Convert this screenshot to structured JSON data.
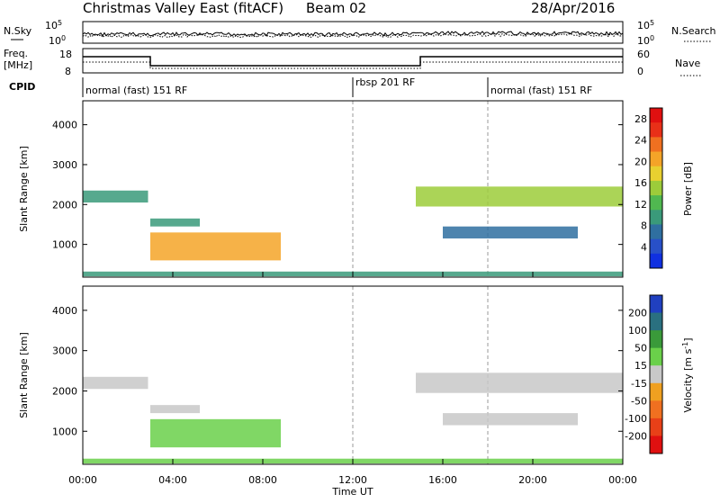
{
  "header": {
    "station": "Christmas Valley East (fitACF)",
    "beam": "Beam 02",
    "date": "28/Apr/2016"
  },
  "summary": {
    "nsky_label": "N.Sky",
    "nsearch_label": "N.Search",
    "noise_ticks_left": [
      "10^5",
      "10^0"
    ],
    "noise_ticks_right": [
      "10^5",
      "10^0"
    ],
    "freq_label_1": "Freq.",
    "freq_label_2": "[MHz]",
    "freq_ticks": [
      "18",
      "8"
    ],
    "nave_label": "Nave",
    "nave_ticks": [
      "60",
      "0"
    ],
    "cpid_label": "CPID",
    "cpid_segments": [
      {
        "label": "normal (fast) 151 RF",
        "start_hour": 0
      },
      {
        "label": "rbsp 201 RF",
        "start_hour": 12
      },
      {
        "label": "normal (fast) 151 RF",
        "start_hour": 18
      }
    ]
  },
  "chart_data": [
    {
      "type": "heatmap",
      "panel": "power",
      "ylabel": "Slant Range [km]",
      "xlim_hours": [
        0,
        24
      ],
      "ylim_km": [
        180,
        4600
      ],
      "yticks": [
        1000,
        2000,
        3000,
        4000
      ],
      "colorbar": {
        "label": "Power [dB]",
        "ticks": [
          4,
          8,
          12,
          16,
          20,
          24,
          28
        ],
        "range": [
          0,
          30
        ],
        "colors": [
          "#1030e0",
          "#2850c8",
          "#2f6fa0",
          "#3a9a7a",
          "#50b850",
          "#9ccc3a",
          "#e8d030",
          "#f4a428",
          "#f07020",
          "#e83018",
          "#e01010"
        ]
      },
      "echo_regions": [
        {
          "start_hour": 0.0,
          "end_hour": 2.9,
          "range_min_km": 2050,
          "range_max_km": 2350,
          "power_db": 10
        },
        {
          "start_hour": 3.0,
          "end_hour": 5.2,
          "range_min_km": 1450,
          "range_max_km": 1650,
          "power_db": 9
        },
        {
          "start_hour": 3.0,
          "end_hour": 8.8,
          "range_min_km": 600,
          "range_max_km": 1300,
          "power_db": 22
        },
        {
          "start_hour": 14.8,
          "end_hour": 24.0,
          "range_min_km": 1950,
          "range_max_km": 2450,
          "power_db": 14
        },
        {
          "start_hour": 16.0,
          "end_hour": 22.0,
          "range_min_km": 1150,
          "range_max_km": 1450,
          "power_db": 7
        },
        {
          "start_hour": 0.0,
          "end_hour": 24.0,
          "range_min_km": 200,
          "range_max_km": 320,
          "power_db": 8
        }
      ]
    },
    {
      "type": "heatmap",
      "panel": "velocity",
      "ylabel": "Slant Range [km]",
      "xlabel": "Time UT",
      "xticks": [
        "00:00",
        "04:00",
        "08:00",
        "12:00",
        "16:00",
        "20:00",
        "00:00"
      ],
      "xlim_hours": [
        0,
        24
      ],
      "ylim_km": [
        180,
        4600
      ],
      "yticks": [
        1000,
        2000,
        3000,
        4000
      ],
      "colorbar": {
        "label": "Velocity [m s^-1]",
        "tick_labels": [
          "200",
          "100",
          "50",
          "15",
          "-15",
          "-50",
          "-100",
          "-200"
        ],
        "colors": [
          "#2040c0",
          "#2a7080",
          "#3a9a3a",
          "#6ad04a",
          "#c8c8c8",
          "#f0a020",
          "#f07020",
          "#e84018",
          "#e01010"
        ]
      },
      "echo_regions": [
        {
          "start_hour": 0.0,
          "end_hour": 2.9,
          "range_min_km": 2050,
          "range_max_km": 2350,
          "velocity": 0
        },
        {
          "start_hour": 3.0,
          "end_hour": 5.2,
          "range_min_km": 1450,
          "range_max_km": 1650,
          "velocity": 0
        },
        {
          "start_hour": 3.0,
          "end_hour": 8.8,
          "range_min_km": 600,
          "range_max_km": 1300,
          "velocity": 30
        },
        {
          "start_hour": 14.8,
          "end_hour": 24.0,
          "range_min_km": 1950,
          "range_max_km": 2450,
          "velocity": 0
        },
        {
          "start_hour": 16.0,
          "end_hour": 22.0,
          "range_min_km": 1150,
          "range_max_km": 1450,
          "velocity": 0
        },
        {
          "start_hour": 0.0,
          "end_hour": 24.0,
          "range_min_km": 200,
          "range_max_km": 320,
          "velocity": 30
        }
      ]
    }
  ]
}
